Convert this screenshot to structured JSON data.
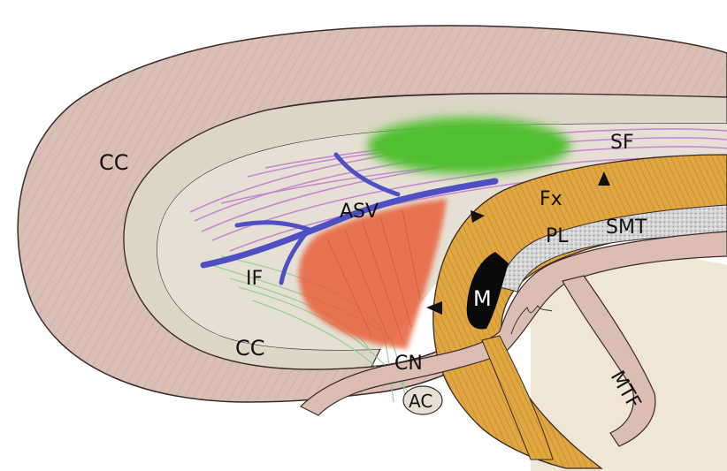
{
  "labels": {
    "cc_upper": "CC",
    "cc_lower": "CC",
    "sf": "SF",
    "fx": "Fx",
    "asv": "ASV",
    "pl": "PL",
    "smt": "SMT",
    "if_label": "IF",
    "m": "M",
    "cn": "CN",
    "mtf": "MTF",
    "ac": "AC"
  },
  "colors": {
    "background": "#ffffff",
    "corpus_callosum": "#d9bfb5",
    "inner_band": "#ddd6c8",
    "fornix": "#e0a640",
    "vein": "#4f4fc4",
    "green_region": "#4fbf2f",
    "red_region": "#e8613a",
    "violet_fibers": "#c07ad0",
    "silver_band": "#c9c9c9",
    "outline": "#3a2a2a"
  }
}
